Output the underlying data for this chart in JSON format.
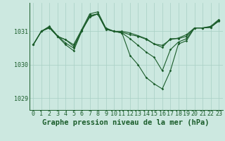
{
  "background_color": "#cce8e0",
  "line_color": "#1a5c2a",
  "grid_color": "#a8cfc4",
  "title": "Graphe pression niveau de la mer (hPa)",
  "title_fontsize": 7.5,
  "tick_fontsize": 6,
  "ylim": [
    1028.65,
    1031.85
  ],
  "xlim": [
    -0.5,
    23.5
  ],
  "yticks": [
    1029,
    1030,
    1031
  ],
  "xticks": [
    0,
    1,
    2,
    3,
    4,
    5,
    6,
    7,
    8,
    9,
    10,
    11,
    12,
    13,
    14,
    15,
    16,
    17,
    18,
    19,
    20,
    21,
    22,
    23
  ],
  "series": [
    [
      1030.6,
      1031.0,
      1031.1,
      1030.85,
      1030.75,
      1030.6,
      1031.05,
      1031.52,
      1031.58,
      1031.1,
      1031.0,
      1031.0,
      1030.95,
      1030.87,
      1030.78,
      1030.62,
      1030.52,
      1030.78,
      1030.78,
      1030.85,
      1031.1,
      1031.1,
      1031.12,
      1031.32
    ],
    [
      1030.6,
      1031.0,
      1031.12,
      1030.85,
      1030.6,
      1030.42,
      1031.0,
      1031.45,
      1031.52,
      1031.08,
      1031.0,
      1030.95,
      1030.28,
      1030.0,
      1029.62,
      1029.43,
      1029.28,
      1029.82,
      1030.62,
      1030.72,
      1031.1,
      1031.1,
      1031.15,
      1031.35
    ],
    [
      1030.6,
      1031.0,
      1031.15,
      1030.87,
      1030.65,
      1030.5,
      1031.0,
      1031.47,
      1031.52,
      1031.06,
      1031.0,
      1030.95,
      1030.78,
      1030.58,
      1030.38,
      1030.22,
      1029.82,
      1030.45,
      1030.68,
      1030.78,
      1031.1,
      1031.1,
      1031.12,
      1031.3
    ],
    [
      1030.6,
      1031.0,
      1031.12,
      1030.85,
      1030.75,
      1030.55,
      1031.02,
      1031.42,
      1031.52,
      1031.06,
      1031.0,
      1030.97,
      1030.9,
      1030.85,
      1030.76,
      1030.62,
      1030.58,
      1030.75,
      1030.8,
      1030.9,
      1031.1,
      1031.1,
      1031.12,
      1031.32
    ]
  ]
}
